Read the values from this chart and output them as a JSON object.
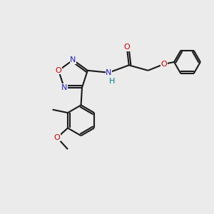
{
  "background_color": "#ebebeb",
  "atom_color_N": "#2020cc",
  "atom_color_O": "#cc0000",
  "atom_color_NH": "#008080",
  "bond_color": "#1a1a1a",
  "bond_width": 1.5,
  "figsize": [
    3.0,
    3.0
  ],
  "dpi": 100,
  "xlim": [
    0,
    10
  ],
  "ylim": [
    0,
    10
  ]
}
